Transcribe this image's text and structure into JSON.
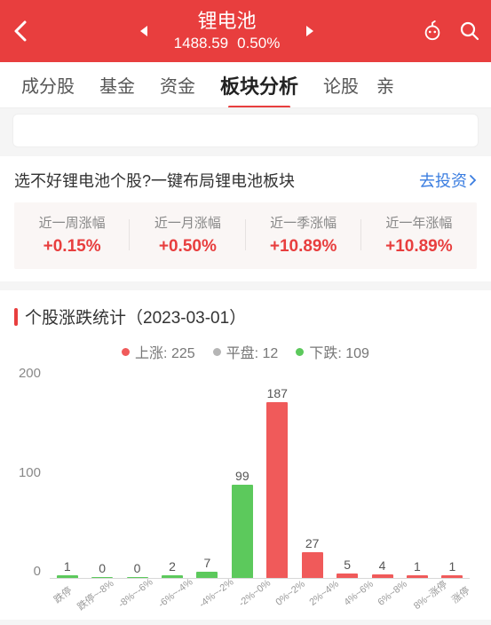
{
  "header": {
    "title": "锂电池",
    "price": "1488.59",
    "change": "0.50%"
  },
  "tabs": {
    "items": [
      "成分股",
      "基金",
      "资金",
      "板块分析",
      "论股"
    ],
    "activeIndex": 3,
    "overflowHint": "亲"
  },
  "promo": {
    "text": "选不好锂电池个股?一键布局锂电池板块",
    "link": "去投资"
  },
  "performance": {
    "cells": [
      {
        "label": "近一周涨幅",
        "value": "+0.15%",
        "color": "#e83e3e"
      },
      {
        "label": "近一月涨幅",
        "value": "+0.50%",
        "color": "#e83e3e"
      },
      {
        "label": "近一季涨幅",
        "value": "+10.89%",
        "color": "#e83e3e"
      },
      {
        "label": "近一年涨幅",
        "value": "+10.89%",
        "color": "#e83e3e"
      }
    ]
  },
  "chart": {
    "title": "个股涨跌统计（2023-03-01）",
    "legend": [
      {
        "label": "上涨",
        "value": "225",
        "color": "#f05a5a"
      },
      {
        "label": "平盘",
        "value": "12",
        "color": "#b5b5b5"
      },
      {
        "label": "下跌",
        "value": "109",
        "color": "#5cc95c"
      }
    ],
    "yTicks": [
      "200",
      "100",
      "0"
    ],
    "yMax": 220,
    "bars": [
      {
        "label": "跌停",
        "value": 1,
        "color": "#5cc95c"
      },
      {
        "label": "跌停~-8%",
        "value": 0,
        "color": "#5cc95c"
      },
      {
        "label": "-8%~-6%",
        "value": 0,
        "color": "#5cc95c"
      },
      {
        "label": "-6%~-4%",
        "value": 2,
        "color": "#5cc95c"
      },
      {
        "label": "-4%~-2%",
        "value": 7,
        "color": "#5cc95c"
      },
      {
        "label": "-2%~0%",
        "value": 99,
        "color": "#5cc95c"
      },
      {
        "label": "0%~2%",
        "value": 187,
        "color": "#f05a5a"
      },
      {
        "label": "2%~4%",
        "value": 27,
        "color": "#f05a5a"
      },
      {
        "label": "4%~6%",
        "value": 5,
        "color": "#f05a5a"
      },
      {
        "label": "6%~8%",
        "value": 4,
        "color": "#f05a5a"
      },
      {
        "label": "8%~涨停",
        "value": 1,
        "color": "#f05a5a"
      },
      {
        "label": "涨停",
        "value": 1,
        "color": "#f05a5a"
      }
    ]
  }
}
